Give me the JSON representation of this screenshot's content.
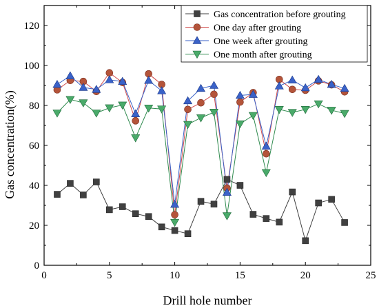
{
  "chart_data": {
    "type": "line",
    "xlabel": "Drill hole number",
    "ylabel": "Gas concentration(%)",
    "xlim": [
      0,
      25
    ],
    "ylim": [
      0,
      130
    ],
    "xticks": [
      "0",
      "5",
      "10",
      "15",
      "20",
      "25"
    ],
    "yticks": [
      "0",
      "20",
      "40",
      "60",
      "80",
      "100",
      "120"
    ],
    "legend_position": "top-right",
    "grid": false,
    "x": [
      1,
      2,
      3,
      4,
      5,
      6,
      7,
      8,
      9,
      10,
      11,
      12,
      13,
      14,
      15,
      16,
      17,
      18,
      19,
      20,
      21,
      22,
      23
    ],
    "series": [
      {
        "name": "Gas concentration before grouting",
        "marker": "square",
        "color": "#404040",
        "line_color": "#404040",
        "values": [
          35.5,
          41,
          35.2,
          41.7,
          27.8,
          29.3,
          25.8,
          24.4,
          19.2,
          17.4,
          15.8,
          32,
          30.6,
          43,
          40,
          25.5,
          23.4,
          21.6,
          36.7,
          12.3,
          31.2,
          33,
          21.4
        ]
      },
      {
        "name": "One day after grouting",
        "marker": "circle",
        "color": "#b4543a",
        "line_color": "#d04a4a",
        "values": [
          87.8,
          92.5,
          92,
          87,
          96.3,
          91.5,
          72.3,
          95.8,
          90.5,
          25.3,
          78,
          81.3,
          85.6,
          38.6,
          81.7,
          86.4,
          55.8,
          93,
          88,
          87.6,
          92.3,
          90.3,
          86.8
        ]
      },
      {
        "name": "One week after grouting",
        "marker": "triangle-up",
        "color": "#3a62c8",
        "line_color": "#3a62c8",
        "values": [
          90.5,
          94.8,
          89,
          88,
          92.8,
          92,
          75.8,
          92.5,
          87.3,
          30.5,
          82.3,
          88.5,
          90,
          36.5,
          85,
          85.5,
          59.6,
          89.7,
          92.7,
          88.8,
          93,
          90.5,
          88.5
        ]
      },
      {
        "name": "One month after grouting",
        "marker": "triangle-down",
        "color": "#4aaa6a",
        "line_color": "#2f8a4e",
        "values": [
          76.2,
          83,
          81.3,
          76.2,
          78.8,
          80.2,
          63.8,
          78.7,
          78.2,
          21.5,
          70.5,
          73.8,
          76.6,
          24.8,
          70.8,
          75,
          46.4,
          78,
          76.5,
          78,
          80.8,
          77.6,
          76
        ]
      }
    ]
  }
}
